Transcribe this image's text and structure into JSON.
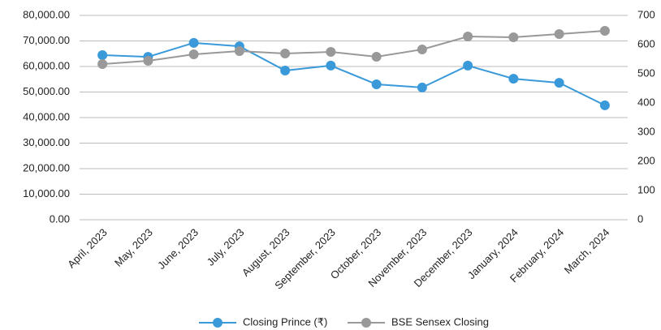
{
  "chart_data": {
    "type": "line",
    "categories": [
      "April, 2023",
      "May, 2023",
      "June, 2023",
      "July, 2023",
      "August, 2023",
      "September, 2023",
      "October, 2023",
      "November, 2023",
      "December, 2023",
      "January, 2024",
      "February, 2024",
      "March, 2024"
    ],
    "series": [
      {
        "name": "Closing Prince (₹)",
        "color": "#3a9ad9",
        "axis": "y2",
        "values": [
          564,
          558,
          606,
          594,
          511,
          528,
          464,
          453,
          528,
          483,
          469,
          392
        ]
      },
      {
        "name": "BSE Sensex Closing",
        "color": "#999999",
        "values": [
          60950,
          62220,
          64760,
          66030,
          65080,
          65710,
          63810,
          66670,
          71750,
          71430,
          72700,
          73970
        ]
      }
    ],
    "ylim": [
      0,
      80000
    ],
    "yticks": [
      {
        "value": 0,
        "label": "0.00"
      },
      {
        "value": 10000,
        "label": "10,000.00"
      },
      {
        "value": 20000,
        "label": "20,000.00"
      },
      {
        "value": 30000,
        "label": "30,000.00"
      },
      {
        "value": 40000,
        "label": "40,000.00"
      },
      {
        "value": 50000,
        "label": "50,000.00"
      },
      {
        "value": 60000,
        "label": "60,000.00"
      },
      {
        "value": 70000,
        "label": "70,000.00"
      },
      {
        "value": 80000,
        "label": "80,000.00"
      }
    ],
    "y2lim": [
      0,
      700
    ],
    "y2ticks": [
      0,
      100,
      200,
      300,
      400,
      500,
      600,
      700
    ],
    "grid": true,
    "legend": "bottom"
  }
}
